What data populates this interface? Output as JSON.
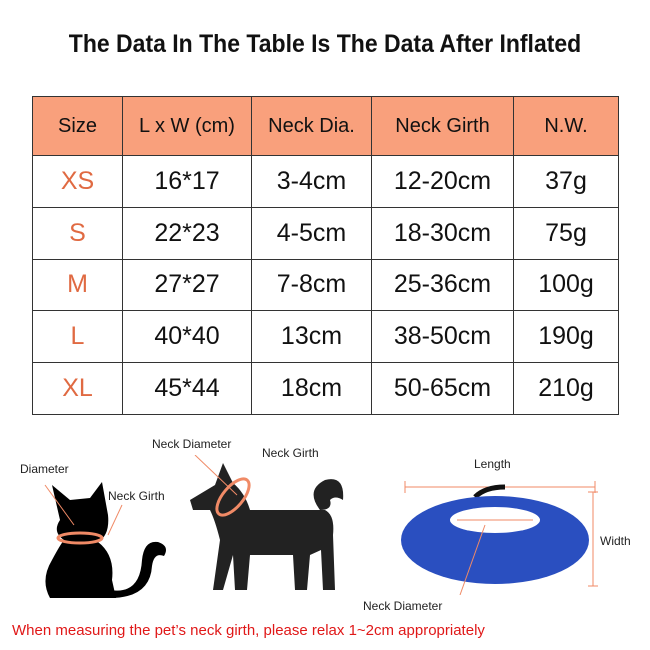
{
  "title": "The Data In The Table Is The Data After Inflated",
  "table": {
    "headers": [
      "Size",
      "L x W (cm)",
      "Neck Dia.",
      "Neck Girth",
      "N.W."
    ],
    "rows": [
      [
        "XS",
        "16*17",
        "3-4cm",
        "12-20cm",
        "37g"
      ],
      [
        "S",
        "22*23",
        "4-5cm",
        "18-30cm",
        "75g"
      ],
      [
        "M",
        "27*27",
        "7-8cm",
        "25-36cm",
        "100g"
      ],
      [
        "L",
        "40*40",
        "13cm",
        "38-50cm",
        "190g"
      ],
      [
        "XL",
        "45*44",
        "18cm",
        "50-65cm",
        "210g"
      ]
    ]
  },
  "diagram": {
    "cat_diameter": "Diameter",
    "cat_neck_girth": "Neck Girth",
    "dog_neck_diameter": "Neck Diameter",
    "dog_neck_girth": "Neck Girth",
    "collar_length": "Length",
    "collar_width": "Width",
    "collar_neck_diameter": "Neck Diameter"
  },
  "note": "When measuring the pet’s neck girth, please relax 1~2cm appropriately",
  "colors": {
    "header": "#f9a07c",
    "size_text": "#e06a42",
    "note": "#e01818",
    "collar": "#2a4fc0"
  }
}
